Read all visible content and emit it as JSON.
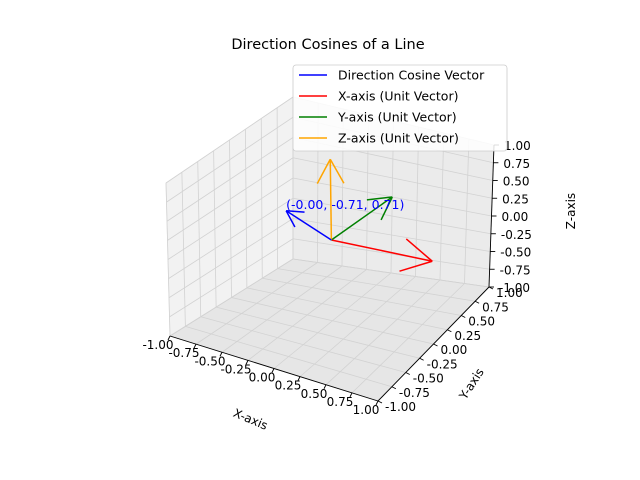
{
  "chart_data": {
    "type": "line",
    "projection": "3d",
    "title": "Direction Cosines of a Line",
    "xlabel": "X-axis",
    "ylabel": "Y-axis",
    "zlabel": "Z-axis",
    "xlim": [
      -1,
      1
    ],
    "ylim": [
      -1,
      1
    ],
    "zlim": [
      -1,
      1
    ],
    "ticks": [
      "-1.00",
      "-0.75",
      "-0.50",
      "-0.25",
      "0.00",
      "0.25",
      "0.50",
      "0.75",
      "1.00"
    ],
    "grid": true,
    "legend_position": "top-right",
    "series": [
      {
        "name": "Direction Cosine Vector",
        "color": "#0000ff",
        "start": [
          0,
          0,
          0
        ],
        "end": [
          -0.0,
          -0.71,
          0.71
        ]
      },
      {
        "name": "X-axis (Unit Vector)",
        "color": "#ff0000",
        "start": [
          0,
          0,
          0
        ],
        "end": [
          1,
          0,
          0
        ]
      },
      {
        "name": "Y-axis (Unit Vector)",
        "color": "#008000",
        "start": [
          0,
          0,
          0
        ],
        "end": [
          0,
          1,
          0
        ]
      },
      {
        "name": "Z-axis (Unit Vector)",
        "color": "#ffa500",
        "start": [
          0,
          0,
          0
        ],
        "end": [
          0,
          0,
          1
        ]
      }
    ],
    "annotation": {
      "text": "(-0.00, -0.71, 0.71)",
      "color": "#0000ff",
      "at": [
        -0.0,
        -0.71,
        0.71
      ]
    }
  }
}
